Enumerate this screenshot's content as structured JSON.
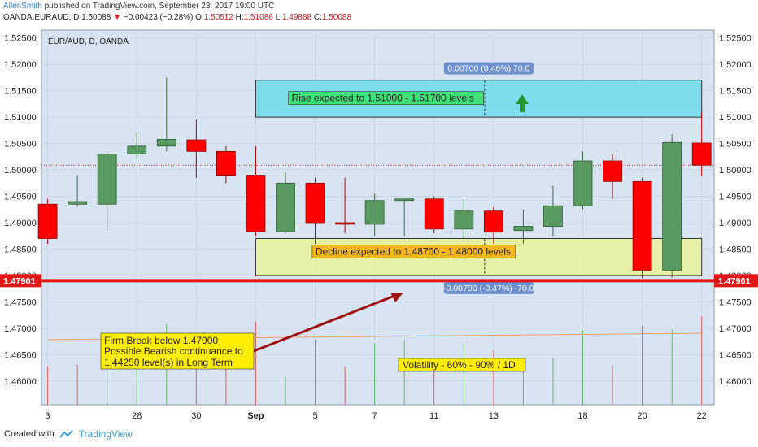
{
  "header": {
    "user": "AllenSmith",
    "published": "published on TradingView.com, September 23, 2017 19:00 UTC",
    "symbol": "OANDA:EURAUD, D",
    "last": "1.50088",
    "change": "−0.00423 (−0.28%)",
    "o_label": "O:",
    "o": "1.50512",
    "h_label": "H:",
    "h": "1.51086",
    "l_label": "L:",
    "l": "1.49888",
    "c_label": "C:",
    "c": "1.50088"
  },
  "footer": {
    "created_with": "Created with",
    "brand": "TradingView"
  },
  "colors": {
    "up": "#5a9a62",
    "down": "#ff0000",
    "grid": "#cfd8e8",
    "bg": "#d8e4f1",
    "level": "#e01818",
    "arrow": "#a01010",
    "rise_zone": "#6fdcec",
    "decline_zone": "#eaf29a"
  },
  "chart_data": {
    "type": "candlestick",
    "title": "EUR/AUD, D, OANDA",
    "ylim": [
      1.4555,
      1.5265
    ],
    "y_ticks": [
      "1.52500",
      "1.52000",
      "1.51500",
      "1.51000",
      "1.50500",
      "1.50000",
      "1.49500",
      "1.49000",
      "1.48500",
      "1.48000",
      "1.47500",
      "1.47000",
      "1.46500",
      "1.46000"
    ],
    "x_ticks": [
      "3",
      "28",
      "30",
      "Sep",
      "5",
      "7",
      "11",
      "13",
      "18",
      "20",
      "22"
    ],
    "x_tick_index": [
      0,
      3,
      5,
      7,
      9,
      11,
      13,
      15,
      18,
      20,
      22
    ],
    "candles": [
      {
        "o": 1.4935,
        "h": 1.4945,
        "l": 1.486,
        "c": 1.487
      },
      {
        "o": 1.4935,
        "h": 1.499,
        "l": 1.493,
        "c": 1.494
      },
      {
        "o": 1.4935,
        "h": 1.5035,
        "l": 1.4885,
        "c": 1.503
      },
      {
        "o": 1.503,
        "h": 1.507,
        "l": 1.502,
        "c": 1.5045
      },
      {
        "o": 1.5045,
        "h": 1.5175,
        "l": 1.5035,
        "c": 1.5058
      },
      {
        "o": 1.5057,
        "h": 1.5095,
        "l": 1.4985,
        "c": 1.5035
      },
      {
        "o": 1.5035,
        "h": 1.5045,
        "l": 1.4975,
        "c": 1.499
      },
      {
        "o": 1.499,
        "h": 1.5045,
        "l": 1.4875,
        "c": 1.4883
      },
      {
        "o": 1.4883,
        "h": 1.4995,
        "l": 1.488,
        "c": 1.4975
      },
      {
        "o": 1.4975,
        "h": 1.4985,
        "l": 1.486,
        "c": 1.49
      },
      {
        "o": 1.49,
        "h": 1.4985,
        "l": 1.488,
        "c": 1.4897
      },
      {
        "o": 1.4897,
        "h": 1.4955,
        "l": 1.4875,
        "c": 1.4942
      },
      {
        "o": 1.4942,
        "h": 1.4945,
        "l": 1.4875,
        "c": 1.4945
      },
      {
        "o": 1.4945,
        "h": 1.495,
        "l": 1.488,
        "c": 1.4888
      },
      {
        "o": 1.4888,
        "h": 1.4945,
        "l": 1.487,
        "c": 1.4922
      },
      {
        "o": 1.4922,
        "h": 1.493,
        "l": 1.486,
        "c": 1.4882
      },
      {
        "o": 1.4885,
        "h": 1.4925,
        "l": 1.486,
        "c": 1.4893
      },
      {
        "o": 1.4893,
        "h": 1.497,
        "l": 1.4875,
        "c": 1.4932
      },
      {
        "o": 1.4932,
        "h": 1.5035,
        "l": 1.4925,
        "c": 1.5017
      },
      {
        "o": 1.5017,
        "h": 1.503,
        "l": 1.4945,
        "c": 1.4978
      },
      {
        "o": 1.4978,
        "h": 1.4985,
        "l": 1.4795,
        "c": 1.481
      },
      {
        "o": 1.481,
        "h": 1.5068,
        "l": 1.4795,
        "c": 1.5052
      },
      {
        "o": 1.5051,
        "h": 1.5109,
        "l": 1.4989,
        "c": 1.5009
      }
    ],
    "volume": [
      0.43,
      0.45,
      0.62,
      0.46,
      0.9,
      0.4,
      0.6,
      0.93,
      0.31,
      0.73,
      0.43,
      0.69,
      0.72,
      0.49,
      0.68,
      0.61,
      0.41,
      0.53,
      0.83,
      0.44,
      0.88,
      0.84,
      0.99
    ],
    "volume_up": [
      false,
      false,
      true,
      true,
      true,
      false,
      false,
      false,
      true,
      false,
      false,
      true,
      true,
      false,
      true,
      false,
      true,
      true,
      true,
      false,
      false,
      true,
      false
    ],
    "current_price_line": 1.5009,
    "horizontal_level": {
      "value": 1.47901,
      "label": "1.47901"
    },
    "zones": [
      {
        "name": "rise",
        "from": 1.51,
        "to": 1.517,
        "label": "Rise expected to 1.51000 - 1.51700 levels",
        "measure": "0.00700 (0.46%) 70.0"
      },
      {
        "name": "decline",
        "from": 1.487,
        "to": 1.48,
        "label": "Decline expected to 1.48700 - 1.48000 levels",
        "measure": "-0.00700 (-0.47%) -70.0"
      }
    ],
    "annotations": [
      "Firm Break below 1.47900",
      "Possible Bearish continuance to",
      "1.44250 level(s) in Long Term",
      "Volatility - 60% - 90%  /  1D"
    ]
  }
}
